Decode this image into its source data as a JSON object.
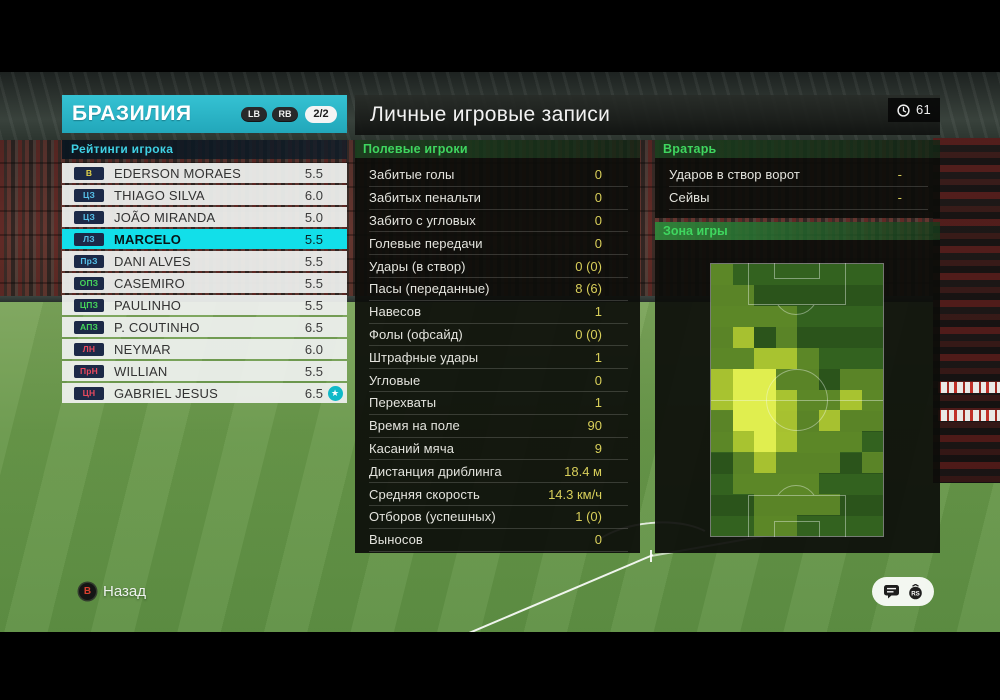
{
  "colors": {
    "accent_cyan": "#2ab5c6",
    "selected_row": "#12dfe9",
    "subheader_text": "#3fd0e4",
    "value_yellow": "#d8cf5a",
    "section_green": "#3fd65f",
    "pos_gk": "#e3d34a",
    "pos_df": "#56c1ea",
    "pos_mf": "#46d65a",
    "pos_fw": "#e8495e",
    "heat_palette": [
      "transparent",
      "rgba(104,146,42,0.78)",
      "rgba(178,203,50,0.92)",
      "#e0ee4f"
    ]
  },
  "hud": {
    "time_value": "61",
    "back_button_label": "B",
    "back_label": "Назад"
  },
  "team_panel": {
    "title": "БРАЗИЛИЯ",
    "shoulder_left": "LB",
    "shoulder_right": "RB",
    "page_indicator": "2/2",
    "subtitle": "Рейтинги игрока",
    "players": [
      {
        "pos": "В",
        "type": "gk",
        "name": "EDERSON MORAES",
        "rating": "5.5",
        "selected": false,
        "star": false
      },
      {
        "pos": "ЦЗ",
        "type": "df",
        "name": "THIAGO SILVA",
        "rating": "6.0",
        "selected": false,
        "star": false
      },
      {
        "pos": "ЦЗ",
        "type": "df",
        "name": "JOÃO MIRANDA",
        "rating": "5.0",
        "selected": false,
        "star": false
      },
      {
        "pos": "ЛЗ",
        "type": "df",
        "name": "MARCELO",
        "rating": "5.5",
        "selected": true,
        "star": false
      },
      {
        "pos": "ПрЗ",
        "type": "df",
        "name": "DANI ALVES",
        "rating": "5.5",
        "selected": false,
        "star": false
      },
      {
        "pos": "ОПЗ",
        "type": "mf",
        "name": "CASEMIRO",
        "rating": "5.5",
        "selected": false,
        "star": false
      },
      {
        "pos": "ЦПЗ",
        "type": "mf",
        "name": "PAULINHO",
        "rating": "5.5",
        "selected": false,
        "star": false
      },
      {
        "pos": "АПЗ",
        "type": "mf",
        "name": "P. COUTINHO",
        "rating": "6.5",
        "selected": false,
        "star": false
      },
      {
        "pos": "ЛН",
        "type": "fw",
        "name": "NEYMAR",
        "rating": "6.0",
        "selected": false,
        "star": false
      },
      {
        "pos": "ПрН",
        "type": "fw",
        "name": "WILLIAN",
        "rating": "5.5",
        "selected": false,
        "star": false
      },
      {
        "pos": "ЦН",
        "type": "fw",
        "name": "GABRIEL JESUS",
        "rating": "6.5",
        "selected": false,
        "star": true
      }
    ]
  },
  "records_panel": {
    "title": "Личные игровые записи",
    "sections": {
      "field_players": "Полевые игроки",
      "goalkeeper": "Вратарь",
      "zone": "Зона игры"
    },
    "field_stats": [
      {
        "label": "Забитые голы",
        "value": "0"
      },
      {
        "label": "Забитых пенальти",
        "value": "0"
      },
      {
        "label": "Забито с угловых",
        "value": "0"
      },
      {
        "label": "Голевые передачи",
        "value": "0"
      },
      {
        "label": "Удары (в створ)",
        "value": "0 (0)"
      },
      {
        "label": "Пасы (переданные)",
        "value": "8 (6)"
      },
      {
        "label": "Навесов",
        "value": "1"
      },
      {
        "label": "Фолы (офсайд)",
        "value": "0 (0)"
      },
      {
        "label": "Штрафные удары",
        "value": "1"
      },
      {
        "label": "Угловые",
        "value": "0"
      },
      {
        "label": "Перехваты",
        "value": "1"
      },
      {
        "label": "Время на поле",
        "value": "90"
      },
      {
        "label": "Касаний мяча",
        "value": "9"
      },
      {
        "label": "Дистанция дриблинга",
        "value": "18.4 м"
      },
      {
        "label": "Средняя скорость",
        "value": "14.3 км/ч"
      },
      {
        "label": "Отборов (успешных)",
        "value": "1 (0)"
      },
      {
        "label": "Выносов",
        "value": "0"
      }
    ],
    "gk_stats": [
      {
        "label": "Ударов в створ ворот",
        "value": "-"
      },
      {
        "label": "Сейвы",
        "value": "-"
      }
    ]
  },
  "chart_data": {
    "type": "heatmap",
    "title": "Зона игры",
    "rows": 13,
    "cols": 8,
    "orientation": "vertical-pitch, own goal at bottom, left flank = left columns",
    "intensity_scale": "0 none, 1 low, 2 medium, 3 high",
    "grid": [
      [
        1,
        0,
        0,
        0,
        0,
        0,
        0,
        0
      ],
      [
        1,
        1,
        0,
        0,
        0,
        0,
        0,
        0
      ],
      [
        1,
        1,
        1,
        1,
        0,
        0,
        0,
        0
      ],
      [
        1,
        2,
        0,
        1,
        0,
        0,
        0,
        0
      ],
      [
        1,
        1,
        2,
        2,
        1,
        0,
        0,
        0
      ],
      [
        2,
        3,
        3,
        1,
        1,
        0,
        1,
        1
      ],
      [
        2,
        3,
        3,
        2,
        1,
        1,
        2,
        1
      ],
      [
        1,
        3,
        3,
        2,
        1,
        2,
        1,
        1
      ],
      [
        1,
        2,
        3,
        2,
        1,
        1,
        1,
        0
      ],
      [
        0,
        1,
        2,
        1,
        1,
        1,
        0,
        1
      ],
      [
        0,
        1,
        1,
        1,
        1,
        0,
        0,
        0
      ],
      [
        0,
        0,
        1,
        1,
        1,
        1,
        0,
        0
      ],
      [
        0,
        0,
        1,
        1,
        0,
        0,
        0,
        0
      ]
    ]
  }
}
